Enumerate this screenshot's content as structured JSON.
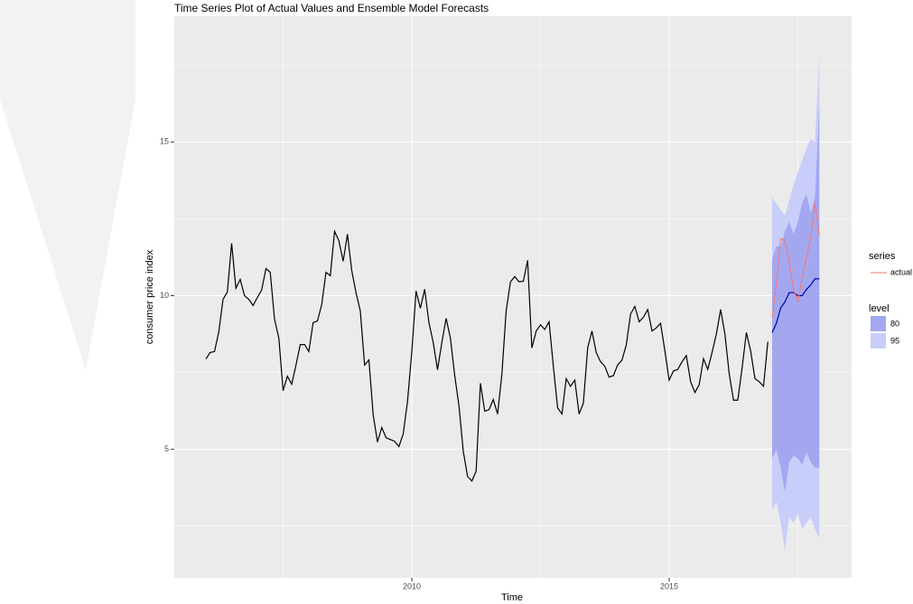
{
  "chart_data": {
    "type": "forecast",
    "title": "Time Series Plot of Actual Values and Ensemble Model Forecasts",
    "x_label": "Time",
    "y_label": "consumer price index",
    "xlim": [
      2005.386,
      2018.544
    ],
    "ylim": [
      0.82,
      19.09
    ],
    "xticks": [
      2010,
      2015
    ],
    "yticks": [
      5,
      10,
      15
    ],
    "xminor": [
      2007.5,
      2012.5,
      2017.5
    ],
    "yminor": [
      2.5,
      7.5,
      12.5,
      17.5
    ],
    "grid": true,
    "lines": [
      {
        "color": "#000000",
        "x": [
          2006,
          2006.083,
          2006.167,
          2006.25,
          2006.333,
          2006.417,
          2006.5,
          2006.583,
          2006.667,
          2006.75,
          2006.833,
          2006.917,
          2007,
          2007.083,
          2007.167,
          2007.25,
          2007.333,
          2007.417,
          2007.5,
          2007.583,
          2007.667,
          2007.75,
          2007.833,
          2007.917,
          2008,
          2008.083,
          2008.167,
          2008.25,
          2008.333,
          2008.417,
          2008.5,
          2008.583,
          2008.667,
          2008.75,
          2008.833,
          2008.917,
          2009,
          2009.083,
          2009.167,
          2009.25,
          2009.333,
          2009.417,
          2009.5,
          2009.583,
          2009.667,
          2009.75,
          2009.833,
          2009.917,
          2010,
          2010.083,
          2010.167,
          2010.25,
          2010.333,
          2010.417,
          2010.5,
          2010.583,
          2010.667,
          2010.75,
          2010.833,
          2010.917,
          2011,
          2011.083,
          2011.167,
          2011.25,
          2011.333,
          2011.417,
          2011.5,
          2011.583,
          2011.667,
          2011.75,
          2011.833,
          2011.917,
          2012,
          2012.083,
          2012.167,
          2012.25,
          2012.333,
          2012.417,
          2012.5,
          2012.583,
          2012.667,
          2012.75,
          2012.833,
          2012.917,
          2013,
          2013.083,
          2013.167,
          2013.25,
          2013.333,
          2013.417,
          2013.5,
          2013.583,
          2013.667,
          2013.75,
          2013.833,
          2013.917,
          2014,
          2014.083,
          2014.167,
          2014.25,
          2014.333,
          2014.417,
          2014.5,
          2014.583,
          2014.667,
          2014.75,
          2014.833,
          2014.917,
          2015,
          2015.083,
          2015.167,
          2015.25,
          2015.333,
          2015.417,
          2015.5,
          2015.583,
          2015.667,
          2015.75,
          2015.833,
          2015.917,
          2016,
          2016.083,
          2016.167,
          2016.25,
          2016.333,
          2016.417,
          2016.5,
          2016.583,
          2016.667,
          2016.75,
          2016.833,
          2016.917
        ],
        "values": [
          7.94,
          8.15,
          8.18,
          8.82,
          9.88,
          10.12,
          11.7,
          10.24,
          10.53,
          10.0,
          9.88,
          9.68,
          9.94,
          10.18,
          10.88,
          10.76,
          9.24,
          8.62,
          6.91,
          7.38,
          7.12,
          7.74,
          8.41,
          8.41,
          8.18,
          9.12,
          9.18,
          9.71,
          10.76,
          10.65,
          12.09,
          11.79,
          11.12,
          12.0,
          10.82,
          10.09,
          9.5,
          7.74,
          7.91,
          6.12,
          5.24,
          5.71,
          5.38,
          5.32,
          5.26,
          5.09,
          5.5,
          6.56,
          8.18,
          10.15,
          9.59,
          10.21,
          9.12,
          8.47,
          7.59,
          8.47,
          9.26,
          8.62,
          7.41,
          6.41,
          4.94,
          4.12,
          3.97,
          4.29,
          7.15,
          6.24,
          6.29,
          6.62,
          6.15,
          7.44,
          9.5,
          10.45,
          10.62,
          10.45,
          10.47,
          11.15,
          8.3,
          8.85,
          9.05,
          8.9,
          9.15,
          7.7,
          6.35,
          6.15,
          7.3,
          7.05,
          7.25,
          6.15,
          6.5,
          8.3,
          8.85,
          8.15,
          7.85,
          7.7,
          7.35,
          7.4,
          7.75,
          7.9,
          8.4,
          9.4,
          9.65,
          9.15,
          9.3,
          9.55,
          8.85,
          8.95,
          9.1,
          8.2,
          7.25,
          7.55,
          7.6,
          7.85,
          8.05,
          7.2,
          6.85,
          7.1,
          7.95,
          7.6,
          8.15,
          8.75,
          9.55,
          8.75,
          7.45,
          6.6,
          6.6,
          7.65,
          8.8,
          8.2,
          7.3,
          7.2,
          7.05,
          8.5
        ]
      },
      {
        "color": "#0000aa",
        "x": [
          2017,
          2017.083,
          2017.167,
          2017.25,
          2017.333,
          2017.417,
          2017.5,
          2017.583,
          2017.667,
          2017.75,
          2017.833,
          2017.917
        ],
        "values": [
          8.8,
          9.1,
          9.6,
          9.8,
          10.1,
          10.1,
          10.0,
          10.0,
          10.2,
          10.35,
          10.55,
          10.55
        ]
      }
    ],
    "series": [
      {
        "name": "actual",
        "color": "#f8766d",
        "x": [
          2017,
          2017.083,
          2017.167,
          2017.25,
          2017.333,
          2017.417,
          2017.5,
          2017.583,
          2017.667,
          2017.75,
          2017.833,
          2017.917
        ],
        "values": [
          9.3,
          10.4,
          11.85,
          11.8,
          11.1,
          10.2,
          9.8,
          10.6,
          11.2,
          11.9,
          13.0,
          11.95
        ]
      }
    ],
    "series_legend_title": "series",
    "level_legend_title": "level",
    "bands": [
      {
        "name": "95",
        "color": "#c9cdfa",
        "x": [
          2017,
          2017.083,
          2017.167,
          2017.25,
          2017.333,
          2017.417,
          2017.5,
          2017.583,
          2017.667,
          2017.75,
          2017.833,
          2017.917
        ],
        "lower": [
          3.0,
          3.3,
          2.6,
          1.7,
          2.8,
          2.6,
          2.9,
          2.4,
          2.6,
          2.8,
          2.4,
          2.1
        ],
        "upper": [
          13.2,
          13.0,
          12.8,
          12.6,
          13.1,
          13.6,
          14.0,
          14.4,
          14.8,
          15.1,
          15.0,
          17.8
        ]
      },
      {
        "name": "80",
        "color": "#a3a7f0",
        "x": [
          2017,
          2017.083,
          2017.167,
          2017.25,
          2017.333,
          2017.417,
          2017.5,
          2017.583,
          2017.667,
          2017.75,
          2017.833,
          2017.917
        ],
        "lower": [
          4.7,
          5.0,
          4.4,
          3.6,
          4.6,
          4.8,
          4.7,
          4.5,
          4.9,
          4.6,
          4.4,
          4.4
        ],
        "upper": [
          11.2,
          11.6,
          11.6,
          12.1,
          12.4,
          12.0,
          12.4,
          13.0,
          13.3,
          12.7,
          13.2,
          16.2
        ]
      }
    ],
    "level_legend_order": [
      1,
      0
    ]
  }
}
